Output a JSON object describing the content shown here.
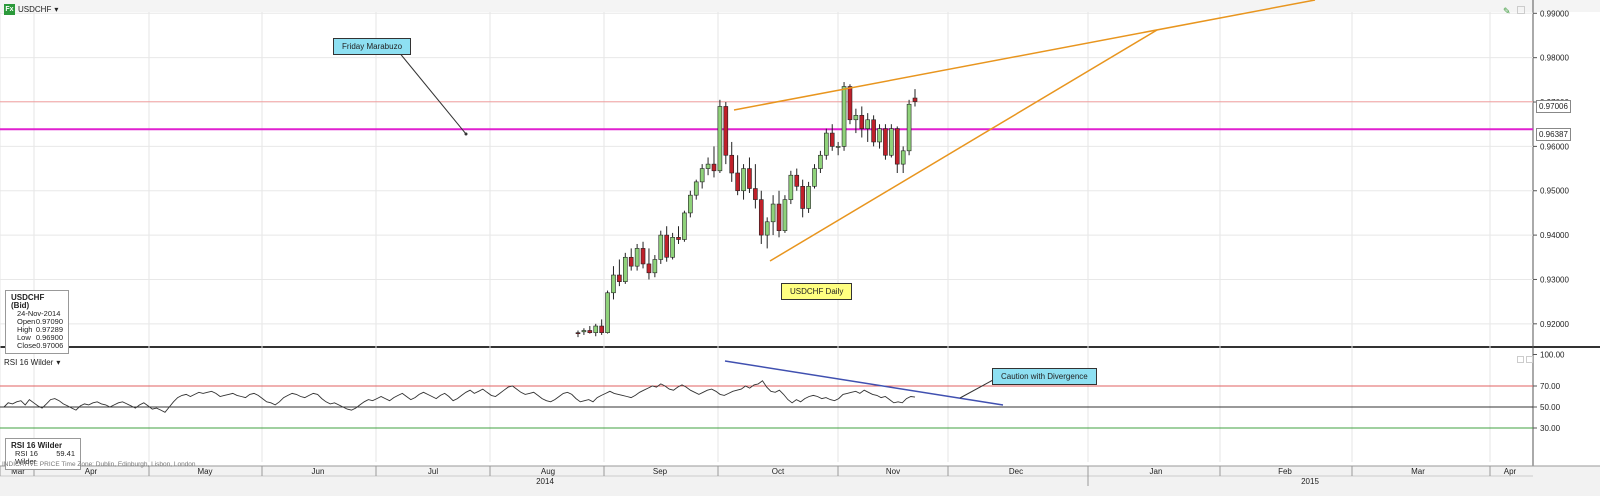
{
  "header": {
    "symbol": "USDCHF",
    "fx_icon": "Fx",
    "symbol_dropdown_icon": "chevron-down-icon",
    "indicator_name": "RSI 16 Wilder"
  },
  "annotations": {
    "friday_marabuzo": "Friday Marabuzo",
    "usdchf_daily": "USDCHF Daily",
    "caution": "Caution with Divergence"
  },
  "info_box": {
    "title": "USDCHF (Bid)",
    "date": "24-Nov-2014",
    "rows": [
      {
        "label": "Open",
        "value": "0.97090"
      },
      {
        "label": "High",
        "value": "0.97289"
      },
      {
        "label": "Low",
        "value": "0.96900"
      },
      {
        "label": "Close",
        "value": "0.97006"
      }
    ]
  },
  "rsi_box": {
    "title": "RSI 16 Wilder",
    "label": "RSI 16 Wilder",
    "value": "59.41"
  },
  "footer": {
    "note": "INDICATIVE PRICE   Time Zone: Dublin, Edinburgh, Lisbon, London"
  },
  "colors": {
    "up_candle": "#8fd27a",
    "down_candle": "#c0202a",
    "trendline": "#e8951e",
    "support_line": "#e020d0",
    "price_line": "#f0a0a0",
    "rsi_line": "#333333",
    "divergence_line": "#4050b0",
    "rsi_70": "#e06060",
    "rsi_30": "#40a040"
  },
  "chart_data": [
    {
      "type": "candlestick",
      "title": "USDCHF",
      "y_ticks": [
        "0.99000",
        "0.98000",
        "0.97000",
        "0.96000",
        "0.95000",
        "0.94000",
        "0.93000",
        "0.92000"
      ],
      "ylim": [
        0.915,
        0.993
      ],
      "current_price_label": "0.97006",
      "support_label": "0.96387",
      "support_level": 0.96387,
      "current_level": 0.97006,
      "x_months": [
        "Mar",
        "Apr",
        "May",
        "Jun",
        "Jul",
        "Aug",
        "Sep",
        "Oct",
        "Nov",
        "Dec",
        "Jan",
        "Feb",
        "Mar",
        "Apr"
      ],
      "x_years": [
        "2014",
        "2015"
      ],
      "candles": [
        [
          0.918,
          0.9185,
          0.917,
          0.9178
        ],
        [
          0.9182,
          0.919,
          0.9175,
          0.9185
        ],
        [
          0.9185,
          0.9195,
          0.9178,
          0.918
        ],
        [
          0.918,
          0.92,
          0.9172,
          0.9195
        ],
        [
          0.9195,
          0.921,
          0.9175,
          0.918
        ],
        [
          0.918,
          0.9275,
          0.9178,
          0.927
        ],
        [
          0.927,
          0.933,
          0.9255,
          0.931
        ],
        [
          0.931,
          0.9345,
          0.9285,
          0.9295
        ],
        [
          0.9295,
          0.936,
          0.929,
          0.935
        ],
        [
          0.935,
          0.937,
          0.932,
          0.933
        ],
        [
          0.933,
          0.938,
          0.932,
          0.937
        ],
        [
          0.937,
          0.9385,
          0.9325,
          0.9335
        ],
        [
          0.9335,
          0.937,
          0.93,
          0.9315
        ],
        [
          0.9315,
          0.9355,
          0.9305,
          0.9345
        ],
        [
          0.9345,
          0.941,
          0.9335,
          0.94
        ],
        [
          0.94,
          0.942,
          0.934,
          0.935
        ],
        [
          0.935,
          0.9405,
          0.9345,
          0.9395
        ],
        [
          0.9395,
          0.942,
          0.938,
          0.939
        ],
        [
          0.939,
          0.9455,
          0.9385,
          0.945
        ],
        [
          0.945,
          0.95,
          0.944,
          0.949
        ],
        [
          0.949,
          0.9525,
          0.948,
          0.952
        ],
        [
          0.952,
          0.956,
          0.9505,
          0.955
        ],
        [
          0.955,
          0.9575,
          0.9535,
          0.956
        ],
        [
          0.956,
          0.96,
          0.953,
          0.9545
        ],
        [
          0.9545,
          0.9705,
          0.954,
          0.969
        ],
        [
          0.969,
          0.97,
          0.956,
          0.958
        ],
        [
          0.958,
          0.961,
          0.952,
          0.954
        ],
        [
          0.954,
          0.958,
          0.949,
          0.95
        ],
        [
          0.95,
          0.956,
          0.948,
          0.955
        ],
        [
          0.955,
          0.9575,
          0.9495,
          0.9505
        ],
        [
          0.9505,
          0.956,
          0.946,
          0.948
        ],
        [
          0.948,
          0.95,
          0.938,
          0.94
        ],
        [
          0.94,
          0.944,
          0.937,
          0.943
        ],
        [
          0.943,
          0.949,
          0.94,
          0.947
        ],
        [
          0.947,
          0.95,
          0.9395,
          0.941
        ],
        [
          0.941,
          0.949,
          0.9405,
          0.948
        ],
        [
          0.948,
          0.9545,
          0.947,
          0.9535
        ],
        [
          0.9535,
          0.955,
          0.95,
          0.951
        ],
        [
          0.951,
          0.9525,
          0.944,
          0.946
        ],
        [
          0.946,
          0.952,
          0.945,
          0.951
        ],
        [
          0.951,
          0.956,
          0.9505,
          0.955
        ],
        [
          0.955,
          0.959,
          0.954,
          0.958
        ],
        [
          0.958,
          0.964,
          0.957,
          0.963
        ],
        [
          0.963,
          0.965,
          0.959,
          0.96
        ],
        [
          0.96,
          0.961,
          0.958,
          0.96
        ],
        [
          0.96,
          0.9745,
          0.959,
          0.9735
        ],
        [
          0.9735,
          0.974,
          0.965,
          0.966
        ],
        [
          0.966,
          0.9685,
          0.963,
          0.967
        ],
        [
          0.967,
          0.969,
          0.962,
          0.964
        ],
        [
          0.964,
          0.9675,
          0.961,
          0.966
        ],
        [
          0.966,
          0.967,
          0.96,
          0.961
        ],
        [
          0.961,
          0.965,
          0.9595,
          0.964
        ],
        [
          0.964,
          0.965,
          0.957,
          0.958
        ],
        [
          0.958,
          0.965,
          0.9575,
          0.964
        ],
        [
          0.964,
          0.9645,
          0.954,
          0.956
        ],
        [
          0.956,
          0.96,
          0.954,
          0.959
        ],
        [
          0.959,
          0.9705,
          0.958,
          0.9695
        ],
        [
          0.9709,
          0.9729,
          0.969,
          0.9701
        ]
      ]
    },
    {
      "type": "line",
      "title": "RSI 16 Wilder",
      "y_ticks": [
        "100.00",
        "70.00",
        "50.00",
        "30.00"
      ],
      "ylim": [
        0,
        100
      ],
      "levels": [
        70,
        50,
        30
      ],
      "series": [
        {
          "name": "RSI 16 Wilder",
          "values": [
            50,
            54,
            53,
            55,
            56,
            52,
            57,
            54,
            51,
            49,
            53,
            57,
            58,
            56,
            53,
            51,
            49,
            47,
            51,
            53,
            52,
            54,
            55,
            53,
            52,
            50,
            52,
            54,
            55,
            53,
            51,
            49,
            52,
            54,
            51,
            48,
            49,
            47,
            45,
            50,
            55,
            59,
            61,
            62,
            60,
            62,
            64,
            63,
            64,
            65,
            63,
            60,
            61,
            62,
            63,
            61,
            60,
            59,
            62,
            63,
            61,
            58,
            55,
            54,
            52,
            55,
            59,
            61,
            63,
            62,
            60,
            59,
            61,
            63,
            62,
            58,
            55,
            53,
            54,
            52,
            50,
            48,
            47,
            49,
            52,
            55,
            57,
            56,
            58,
            60,
            58,
            56,
            59,
            61,
            63,
            60,
            57,
            59,
            62,
            64,
            62,
            60,
            58,
            61,
            63,
            60,
            56,
            58,
            61,
            64,
            66,
            63,
            65,
            67,
            64,
            61,
            60,
            63,
            66,
            69,
            70,
            67,
            64,
            62,
            63,
            64,
            61,
            58,
            56,
            55,
            57,
            60,
            63,
            64,
            62,
            58,
            55,
            56,
            57,
            55,
            59,
            61,
            63,
            65,
            63,
            62,
            61,
            60,
            59,
            61,
            64,
            66,
            68,
            70,
            69,
            72,
            70,
            67,
            66,
            69,
            71,
            69,
            66,
            64,
            62,
            64,
            66,
            67,
            65,
            62,
            61,
            63,
            65,
            66,
            67,
            70,
            68,
            71,
            72,
            75,
            69,
            65,
            64,
            66,
            62,
            57,
            54,
            57,
            55,
            58,
            60,
            61,
            60,
            58,
            59,
            57,
            56,
            58,
            62,
            63,
            64,
            65,
            63,
            66,
            64,
            62,
            61,
            59,
            60,
            57,
            54,
            55,
            54,
            58,
            60,
            59.41
          ]
        }
      ],
      "divergence": "down"
    }
  ]
}
